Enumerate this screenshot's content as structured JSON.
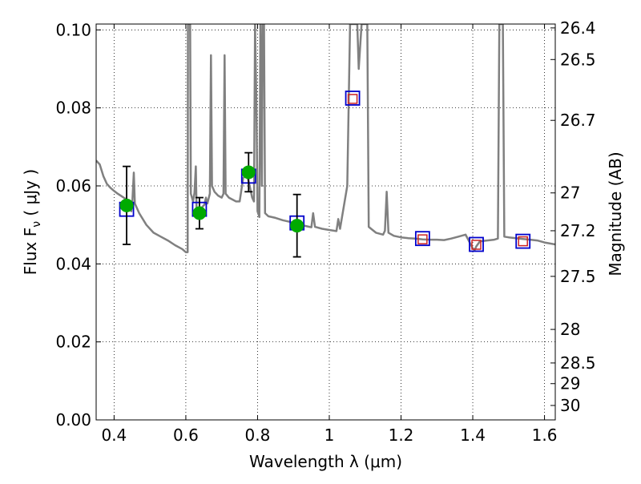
{
  "chart_data": {
    "type": "line",
    "xlabel": "Wavelength  λ (μm)",
    "ylabel": "Flux  F_ν ( μJy )",
    "y2label": "Magnitude (AB)",
    "xlim": [
      0.35,
      1.63
    ],
    "ylim": [
      0.0,
      0.1015
    ],
    "grid": true,
    "xticks": [
      0.4,
      0.6,
      0.8,
      1.0,
      1.2,
      1.4,
      1.6
    ],
    "xtick_labels": [
      "0.4",
      "0.6",
      "0.8",
      "1",
      "1.2",
      "1.4",
      "1.6"
    ],
    "yticks": [
      0.0,
      0.02,
      0.04,
      0.06,
      0.08,
      0.1
    ],
    "ytick_labels": [
      "0.00",
      "0.02",
      "0.04",
      "0.06",
      "0.08",
      "0.10"
    ],
    "y2ticks": [
      {
        "label": "26.4",
        "flux": 0.1005
      },
      {
        "label": "26.5",
        "flux": 0.0924
      },
      {
        "label": "26.7",
        "flux": 0.0768
      },
      {
        "label": "27",
        "flux": 0.0582
      },
      {
        "label": "27.2",
        "flux": 0.0485
      },
      {
        "label": "27.5",
        "flux": 0.0368
      },
      {
        "label": "28",
        "flux": 0.0232
      },
      {
        "label": "28.5",
        "flux": 0.0146
      },
      {
        "label": "29",
        "flux": 0.0093
      },
      {
        "label": "30",
        "flux": 0.0037
      }
    ],
    "series": [
      {
        "kind": "model-spectrum",
        "color": "#808080",
        "points": [
          [
            0.35,
            0.0665
          ],
          [
            0.36,
            0.0655
          ],
          [
            0.37,
            0.0625
          ],
          [
            0.38,
            0.0605
          ],
          [
            0.39,
            0.0595
          ],
          [
            0.4,
            0.0587
          ],
          [
            0.41,
            0.058
          ],
          [
            0.42,
            0.0574
          ],
          [
            0.43,
            0.0568
          ],
          [
            0.44,
            0.0562
          ],
          [
            0.445,
            0.0555
          ],
          [
            0.448,
            0.0535
          ],
          [
            0.451,
            0.056
          ],
          [
            0.455,
            0.0634
          ],
          [
            0.458,
            0.0555
          ],
          [
            0.47,
            0.053
          ],
          [
            0.49,
            0.05
          ],
          [
            0.51,
            0.048
          ],
          [
            0.53,
            0.047
          ],
          [
            0.55,
            0.046
          ],
          [
            0.57,
            0.0448
          ],
          [
            0.59,
            0.0438
          ],
          [
            0.6,
            0.043
          ],
          [
            0.605,
            0.043
          ],
          [
            0.606,
            0.1015
          ],
          [
            0.612,
            0.1015
          ],
          [
            0.614,
            0.058
          ],
          [
            0.62,
            0.056
          ],
          [
            0.624,
            0.0582
          ],
          [
            0.628,
            0.065
          ],
          [
            0.63,
            0.0543
          ],
          [
            0.638,
            0.0535
          ],
          [
            0.645,
            0.0545
          ],
          [
            0.652,
            0.0552
          ],
          [
            0.656,
            0.057
          ],
          [
            0.66,
            0.0555
          ],
          [
            0.667,
            0.058
          ],
          [
            0.67,
            0.0935
          ],
          [
            0.673,
            0.06
          ],
          [
            0.68,
            0.0585
          ],
          [
            0.69,
            0.0575
          ],
          [
            0.7,
            0.057
          ],
          [
            0.705,
            0.058
          ],
          [
            0.708,
            0.0935
          ],
          [
            0.711,
            0.058
          ],
          [
            0.72,
            0.057
          ],
          [
            0.73,
            0.0565
          ],
          [
            0.74,
            0.056
          ],
          [
            0.75,
            0.056
          ],
          [
            0.76,
            0.062
          ],
          [
            0.77,
            0.063
          ],
          [
            0.778,
            0.06
          ],
          [
            0.785,
            0.057
          ],
          [
            0.79,
            0.056
          ],
          [
            0.793,
            0.1015
          ],
          [
            0.797,
            0.08
          ],
          [
            0.8,
            0.0535
          ],
          [
            0.805,
            0.052
          ],
          [
            0.808,
            0.1015
          ],
          [
            0.812,
            0.06
          ],
          [
            0.814,
            0.1015
          ],
          [
            0.818,
            0.1015
          ],
          [
            0.821,
            0.053
          ],
          [
            0.83,
            0.0522
          ],
          [
            0.85,
            0.0518
          ],
          [
            0.87,
            0.0512
          ],
          [
            0.89,
            0.0508
          ],
          [
            0.91,
            0.0502
          ],
          [
            0.93,
            0.0498
          ],
          [
            0.95,
            0.0494
          ],
          [
            0.955,
            0.053
          ],
          [
            0.96,
            0.0495
          ],
          [
            0.98,
            0.049
          ],
          [
            1.0,
            0.0487
          ],
          [
            1.02,
            0.0484
          ],
          [
            1.025,
            0.0515
          ],
          [
            1.03,
            0.049
          ],
          [
            1.05,
            0.06
          ],
          [
            1.058,
            0.1015
          ],
          [
            1.078,
            0.1015
          ],
          [
            1.082,
            0.09
          ],
          [
            1.09,
            0.1015
          ],
          [
            1.106,
            0.1015
          ],
          [
            1.11,
            0.0495
          ],
          [
            1.13,
            0.048
          ],
          [
            1.15,
            0.0475
          ],
          [
            1.155,
            0.0485
          ],
          [
            1.16,
            0.0585
          ],
          [
            1.165,
            0.048
          ],
          [
            1.18,
            0.0472
          ],
          [
            1.2,
            0.0468
          ],
          [
            1.22,
            0.0466
          ],
          [
            1.24,
            0.0465
          ],
          [
            1.26,
            0.0463
          ],
          [
            1.28,
            0.0462
          ],
          [
            1.3,
            0.0462
          ],
          [
            1.32,
            0.0461
          ],
          [
            1.34,
            0.0465
          ],
          [
            1.36,
            0.047
          ],
          [
            1.38,
            0.0475
          ],
          [
            1.4,
            0.044
          ],
          [
            1.405,
            0.0435
          ],
          [
            1.41,
            0.0445
          ],
          [
            1.42,
            0.0458
          ],
          [
            1.44,
            0.046
          ],
          [
            1.46,
            0.0462
          ],
          [
            1.47,
            0.0465
          ],
          [
            1.474,
            0.1015
          ],
          [
            1.484,
            0.1015
          ],
          [
            1.488,
            0.047
          ],
          [
            1.5,
            0.0468
          ],
          [
            1.52,
            0.0466
          ],
          [
            1.54,
            0.0464
          ],
          [
            1.56,
            0.0462
          ],
          [
            1.58,
            0.046
          ],
          [
            1.6,
            0.0455
          ],
          [
            1.63,
            0.045
          ]
        ]
      },
      {
        "kind": "model-photometry",
        "marker": "square",
        "color": "#0000cc",
        "points": [
          [
            0.435,
            0.054
          ],
          [
            0.638,
            0.054
          ],
          [
            0.775,
            0.0625
          ],
          [
            0.91,
            0.0505
          ],
          [
            1.065,
            0.0825
          ],
          [
            1.26,
            0.0465
          ],
          [
            1.41,
            0.045
          ],
          [
            1.54,
            0.0458
          ]
        ]
      },
      {
        "kind": "observed-upper-bands",
        "marker": "square",
        "color": "#cc2222",
        "points": [
          [
            1.065,
            0.0823
          ],
          [
            1.26,
            0.0463
          ],
          [
            1.41,
            0.0449
          ],
          [
            1.54,
            0.0458
          ]
        ]
      },
      {
        "kind": "observed-photometry",
        "marker": "circle",
        "color": "#00aa00",
        "points": [
          {
            "x": 0.435,
            "y": 0.055,
            "err": 0.01
          },
          {
            "x": 0.638,
            "y": 0.053,
            "err": 0.004
          },
          {
            "x": 0.775,
            "y": 0.0635,
            "err": 0.005
          },
          {
            "x": 0.91,
            "y": 0.0498,
            "err": 0.008
          }
        ]
      }
    ]
  }
}
